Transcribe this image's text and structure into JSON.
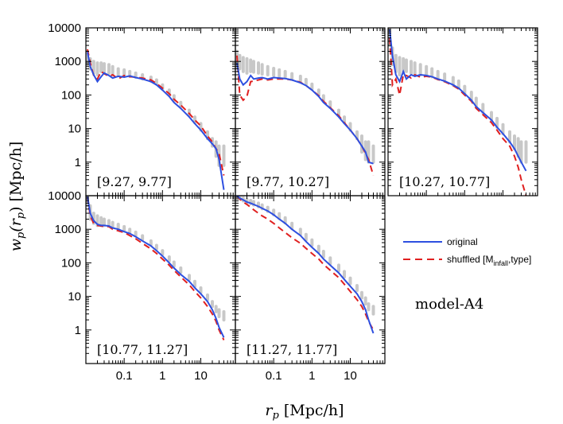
{
  "chart_data": {
    "type": "line",
    "xscale": "log",
    "yscale": "log",
    "xlabel_var": "r",
    "xlabel_sub": "p",
    "xlabel_unit": "[Mpc/h]",
    "ylabel_fn": "w",
    "ylabel_sub": "p",
    "ylabel_arg": "(r",
    "ylabel_arg_sub": "p",
    "ylabel_close": ")",
    "ylabel_unit": "[Mpc/h]",
    "xlim": [
      0.01,
      80
    ],
    "ylim": [
      0.1,
      10000
    ],
    "x_tick_labels": [
      "0.1",
      "1",
      "10"
    ],
    "x_tick_values": [
      0.1,
      1,
      10
    ],
    "y_tick_labels": [
      "10000",
      "1000",
      "100",
      "10",
      "1"
    ],
    "y_tick_values": [
      10000,
      1000,
      100,
      10,
      1
    ],
    "model_label": "model-A4",
    "legend": {
      "entries": [
        {
          "label_main": "original",
          "color": "#2d4fe0",
          "style": "solid"
        },
        {
          "label_main": "shuffled [M",
          "label_sub": "infall",
          "label_tail": ",type]",
          "color": "#e02020",
          "style": "dashed"
        }
      ]
    },
    "error_band_color": "#c8c8c8",
    "panels": [
      {
        "label": "[9.27, 9.77]",
        "x": [
          0.011,
          0.013,
          0.016,
          0.02,
          0.025,
          0.03,
          0.04,
          0.05,
          0.07,
          0.1,
          0.14,
          0.2,
          0.3,
          0.5,
          0.7,
          1,
          1.5,
          2,
          3,
          5,
          7,
          10,
          15,
          20,
          25,
          30,
          40
        ],
        "original": [
          1900,
          700,
          400,
          250,
          350,
          450,
          380,
          320,
          360,
          340,
          370,
          330,
          300,
          250,
          200,
          140,
          90,
          60,
          40,
          22,
          14,
          9,
          5,
          3.5,
          2.5,
          1.2,
          0.15
        ],
        "shuffled": [
          2300,
          900,
          380,
          300,
          500,
          430,
          360,
          400,
          300,
          380,
          350,
          340,
          320,
          280,
          220,
          160,
          110,
          75,
          50,
          28,
          18,
          12,
          6,
          4,
          2.5,
          1.8,
          0.4
        ],
        "band_lo": [
          800,
          600,
          450,
          400,
          500,
          500,
          450,
          400,
          380,
          380,
          360,
          340,
          300,
          260,
          210,
          150,
          100,
          70,
          45,
          25,
          15,
          9,
          5,
          3,
          1.5,
          0.8,
          0.8
        ],
        "band_hi": [
          2000,
          1200,
          1000,
          900,
          900,
          850,
          800,
          700,
          600,
          560,
          500,
          450,
          400,
          340,
          280,
          200,
          140,
          95,
          60,
          35,
          22,
          14,
          8,
          5,
          4,
          3,
          3
        ]
      },
      {
        "label": "[9.77, 10.27]",
        "x": [
          0.011,
          0.013,
          0.016,
          0.02,
          0.025,
          0.03,
          0.04,
          0.05,
          0.07,
          0.1,
          0.14,
          0.2,
          0.3,
          0.5,
          0.7,
          1,
          1.5,
          2,
          3,
          5,
          7,
          10,
          15,
          20,
          25,
          30,
          40
        ],
        "original": [
          900,
          300,
          200,
          250,
          380,
          300,
          320,
          330,
          300,
          330,
          320,
          310,
          280,
          230,
          190,
          140,
          90,
          60,
          40,
          22,
          14,
          9,
          5,
          3,
          2,
          1,
          0.9
        ],
        "shuffled": [
          1500,
          100,
          70,
          90,
          250,
          260,
          280,
          300,
          280,
          300,
          300,
          300,
          280,
          240,
          190,
          140,
          95,
          65,
          42,
          24,
          15,
          9,
          5,
          3,
          1.8,
          1.2,
          0.4
        ],
        "band_lo": [
          700,
          600,
          500,
          450,
          500,
          480,
          450,
          420,
          400,
          380,
          360,
          340,
          310,
          260,
          210,
          150,
          100,
          70,
          45,
          25,
          15,
          9,
          5,
          2,
          1.2,
          1,
          1
        ],
        "band_hi": [
          2000,
          1500,
          1300,
          1200,
          1100,
          1000,
          900,
          800,
          700,
          620,
          560,
          500,
          430,
          360,
          290,
          210,
          140,
          95,
          62,
          35,
          22,
          14,
          8,
          6,
          4,
          4,
          3
        ]
      },
      {
        "label": "[10.27, 10.77]",
        "x": [
          0.011,
          0.013,
          0.016,
          0.02,
          0.025,
          0.03,
          0.04,
          0.05,
          0.07,
          0.1,
          0.14,
          0.2,
          0.3,
          0.5,
          0.7,
          1,
          1.5,
          2,
          3,
          5,
          7,
          10,
          15,
          20,
          25,
          30,
          40
        ],
        "original": [
          9000,
          1500,
          400,
          250,
          500,
          300,
          400,
          360,
          400,
          380,
          350,
          300,
          260,
          200,
          160,
          110,
          70,
          45,
          30,
          18,
          11,
          7,
          4,
          2.5,
          1.5,
          1,
          0.55
        ],
        "shuffled": [
          5000,
          200,
          300,
          100,
          400,
          380,
          320,
          400,
          340,
          360,
          340,
          290,
          250,
          190,
          150,
          100,
          65,
          40,
          26,
          15,
          9,
          5,
          3,
          1.5,
          0.7,
          0.3,
          0.1
        ],
        "band_lo": [
          3000,
          800,
          500,
          400,
          500,
          500,
          450,
          420,
          400,
          380,
          350,
          300,
          260,
          200,
          160,
          110,
          72,
          47,
          30,
          18,
          11,
          7,
          4,
          2.5,
          1.5,
          1,
          1
        ],
        "band_hi": [
          10000,
          2500,
          1500,
          1300,
          1200,
          1100,
          1000,
          900,
          800,
          700,
          600,
          500,
          420,
          330,
          260,
          180,
          120,
          80,
          52,
          30,
          20,
          13,
          8,
          6,
          5,
          4,
          4
        ]
      },
      {
        "label": "[10.77, 11.27]",
        "x": [
          0.011,
          0.013,
          0.016,
          0.02,
          0.025,
          0.03,
          0.04,
          0.05,
          0.07,
          0.1,
          0.14,
          0.2,
          0.3,
          0.5,
          0.7,
          1,
          1.5,
          2,
          3,
          5,
          7,
          10,
          15,
          20,
          25,
          30,
          40
        ],
        "original": [
          9500,
          3000,
          1800,
          1400,
          1300,
          1300,
          1250,
          1100,
          1000,
          850,
          750,
          600,
          450,
          320,
          230,
          160,
          100,
          70,
          45,
          28,
          18,
          12,
          7,
          4,
          2.2,
          1.2,
          0.6
        ],
        "shuffled": [
          9000,
          2500,
          1500,
          1300,
          1250,
          1200,
          1200,
          1000,
          900,
          800,
          650,
          520,
          380,
          260,
          190,
          130,
          85,
          60,
          38,
          22,
          14,
          9,
          5,
          3,
          1.8,
          1,
          0.5
        ],
        "band_lo": [
          5000,
          2000,
          1500,
          1300,
          1300,
          1300,
          1300,
          1200,
          1050,
          900,
          800,
          650,
          500,
          350,
          260,
          180,
          115,
          80,
          52,
          32,
          20,
          13,
          8,
          5,
          3.5,
          2.5,
          2
        ],
        "band_hi": [
          10000,
          5000,
          3000,
          2500,
          2200,
          2000,
          1800,
          1600,
          1400,
          1200,
          1000,
          820,
          640,
          450,
          330,
          230,
          150,
          105,
          70,
          42,
          28,
          18,
          11,
          7,
          5,
          4,
          3.5
        ]
      },
      {
        "label": "[11.27, 11.77]",
        "x": [
          0.011,
          0.013,
          0.016,
          0.02,
          0.025,
          0.03,
          0.04,
          0.05,
          0.07,
          0.1,
          0.14,
          0.2,
          0.3,
          0.5,
          0.7,
          1,
          1.5,
          2,
          3,
          5,
          7,
          10,
          15,
          20,
          25,
          30,
          40
        ],
        "original": [
          10000,
          8500,
          7500,
          6500,
          6000,
          5500,
          4800,
          4200,
          3500,
          2700,
          2000,
          1500,
          1000,
          650,
          430,
          290,
          190,
          130,
          85,
          50,
          32,
          20,
          12,
          7,
          4,
          2,
          0.8
        ],
        "shuffled": [
          10000,
          8000,
          6500,
          5500,
          4500,
          3800,
          3000,
          2500,
          2000,
          1500,
          1100,
          800,
          560,
          380,
          270,
          190,
          130,
          90,
          60,
          36,
          23,
          14,
          8,
          5,
          3,
          1.8,
          1
        ],
        "band_lo": [
          9000,
          8000,
          7000,
          6300,
          5800,
          5300,
          4700,
          4100,
          3400,
          2700,
          2100,
          1550,
          1050,
          700,
          480,
          330,
          210,
          150,
          95,
          58,
          38,
          24,
          15,
          9,
          6,
          4,
          3
        ],
        "band_hi": [
          10000,
          9500,
          8500,
          7800,
          7200,
          6700,
          6000,
          5300,
          4500,
          3700,
          2900,
          2200,
          1500,
          1000,
          700,
          480,
          310,
          220,
          140,
          85,
          55,
          35,
          21,
          13,
          9,
          6,
          5
        ]
      }
    ]
  }
}
